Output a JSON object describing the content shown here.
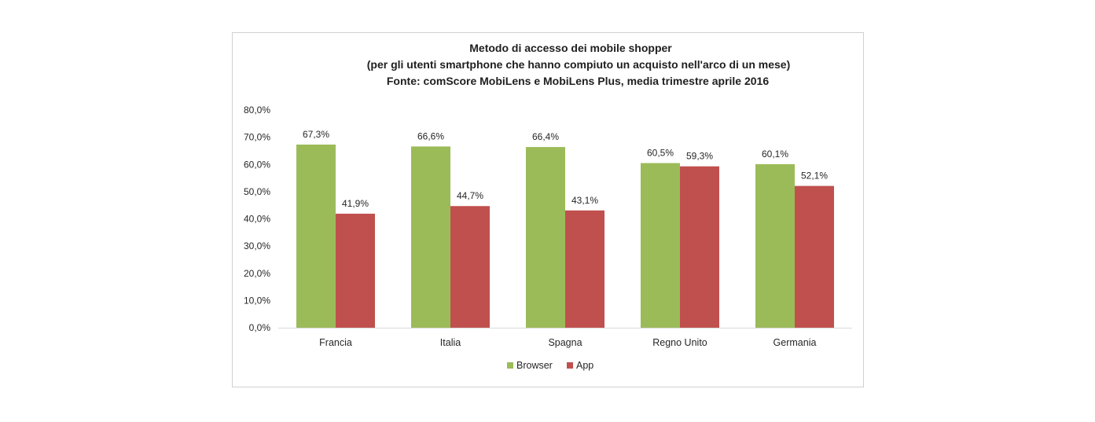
{
  "chart_data": {
    "type": "bar",
    "title": [
      "Metodo di accesso dei mobile shopper",
      "(per gli utenti smartphone che hanno compiuto un acquisto nell'arco di un mese)",
      "Fonte: comScore MobiLens e MobiLens Plus, media trimestre aprile 2016"
    ],
    "categories": [
      "Francia",
      "Italia",
      "Spagna",
      "Regno Unito",
      "Germania"
    ],
    "series": [
      {
        "name": "Browser",
        "color": "#9bbb59",
        "values": [
          67.3,
          66.6,
          66.4,
          60.5,
          60.1
        ],
        "labels": [
          "67,3%",
          "66,6%",
          "66,4%",
          "60,5%",
          "60,1%"
        ]
      },
      {
        "name": "App",
        "color": "#c0504d",
        "values": [
          41.9,
          44.7,
          43.1,
          59.3,
          52.1
        ],
        "labels": [
          "41,9%",
          "44,7%",
          "43,1%",
          "59,3%",
          "52,1%"
        ]
      }
    ],
    "ylim": [
      0,
      80
    ],
    "yticks": [
      0,
      10,
      20,
      30,
      40,
      50,
      60,
      70,
      80
    ],
    "ytick_labels": [
      "0,0%",
      "10,0%",
      "20,0%",
      "30,0%",
      "40,0%",
      "50,0%",
      "60,0%",
      "70,0%",
      "80,0%"
    ],
    "grid": false,
    "legend": "bottom",
    "xlabel": "",
    "ylabel": ""
  }
}
